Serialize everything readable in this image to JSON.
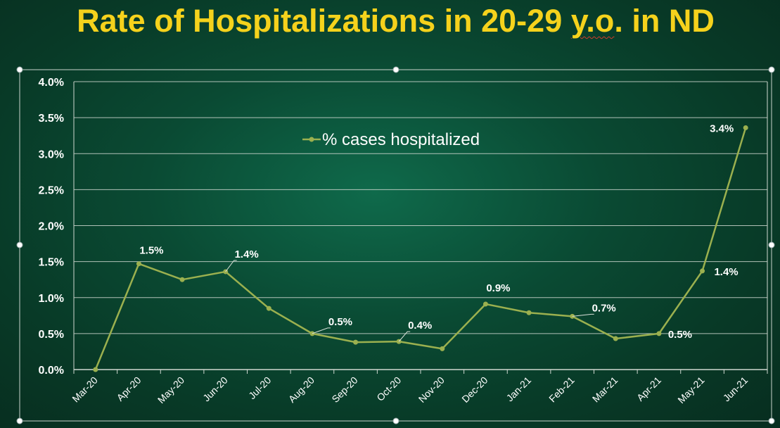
{
  "title": {
    "before": "Rate of Hospitalizations in 20-29 ",
    "squiggle": "y.o",
    "after": ". in ND"
  },
  "colors": {
    "title": "#f5d21c",
    "series": "#9bb04f",
    "gridline": "#cfd8d0",
    "text": "#ffffff"
  },
  "chart_data": {
    "type": "line",
    "title": "Rate of Hospitalizations in 20-29 y.o. in ND",
    "xlabel": "",
    "ylabel": "",
    "x": [
      "Mar-20",
      "Apr-20",
      "May-20",
      "Jun-20",
      "Jul-20",
      "Aug-20",
      "Sep-20",
      "Oct-20",
      "Nov-20",
      "Dec-20",
      "Jan-21",
      "Feb-21",
      "Mar-21",
      "Apr-21",
      "May-21",
      "Jun-21"
    ],
    "ylim": [
      0,
      4.0
    ],
    "yticks": [
      "0.0%",
      "0.5%",
      "1.0%",
      "1.5%",
      "2.0%",
      "2.5%",
      "3.0%",
      "3.5%",
      "4.0%"
    ],
    "grid": true,
    "legend_position": "upper-center",
    "series": [
      {
        "name": "% cases hospitalized",
        "values": [
          0.0,
          1.47,
          1.25,
          1.36,
          0.85,
          0.5,
          0.38,
          0.39,
          0.29,
          0.91,
          0.79,
          0.74,
          0.43,
          0.5,
          1.37,
          3.36
        ],
        "data_labels": [
          "",
          "1.5%",
          "",
          "1.4%",
          "",
          "0.5%",
          "",
          "0.4%",
          "",
          "0.9%",
          "",
          "0.7%",
          "",
          "0.5%",
          "1.4%",
          "3.4%"
        ]
      }
    ]
  }
}
